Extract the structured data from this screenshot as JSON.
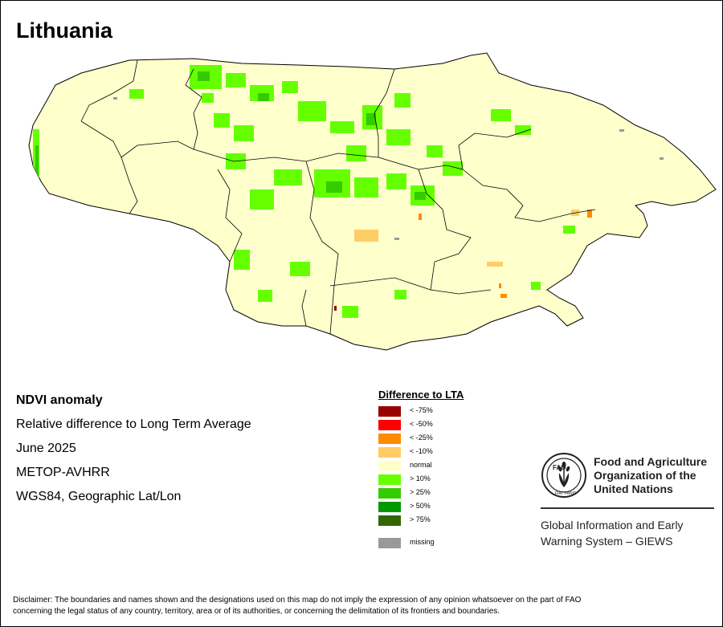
{
  "title": "Lithuania",
  "meta": {
    "product": "NDVI anomaly",
    "description": "Relative difference to Long Term Average",
    "period": "June 2025",
    "sensor": "METOP-AVHRR",
    "projection": "WGS84, Geographic Lat/Lon"
  },
  "legend": {
    "title": "Difference to LTA",
    "items": [
      {
        "label": "< -75%",
        "color": "#990000"
      },
      {
        "label": "< -50%",
        "color": "#ff0000"
      },
      {
        "label": "< -25%",
        "color": "#ff8c00"
      },
      {
        "label": "< -10%",
        "color": "#ffcc66"
      },
      {
        "label": "normal",
        "color": "#ffffcc"
      },
      {
        "label": "> 10%",
        "color": "#66ff00"
      },
      {
        "label": "> 25%",
        "color": "#33cc00"
      },
      {
        "label": "> 50%",
        "color": "#009900"
      },
      {
        "label": "> 75%",
        "color": "#336600"
      }
    ],
    "missing": {
      "label": "missing",
      "color": "#999999"
    }
  },
  "org": {
    "logo_text": "FAO",
    "logo_motto": "FIAT PANIS",
    "name_line1": "Food and Agriculture",
    "name_line2": "Organization of the",
    "name_line3": "United Nations",
    "system_line1": "Global Information and Early",
    "system_line2": "Warning System – GIEWS"
  },
  "disclaimer": {
    "line1": "Disclaimer: The boundaries and names shown and the designations used on this map do not imply the expression of any opinion whatsoever on the part of FAO",
    "line2": "concerning the legal status of any country, territory, area or of its authorities, or concerning the delimitation of its frontiers and boundaries."
  }
}
